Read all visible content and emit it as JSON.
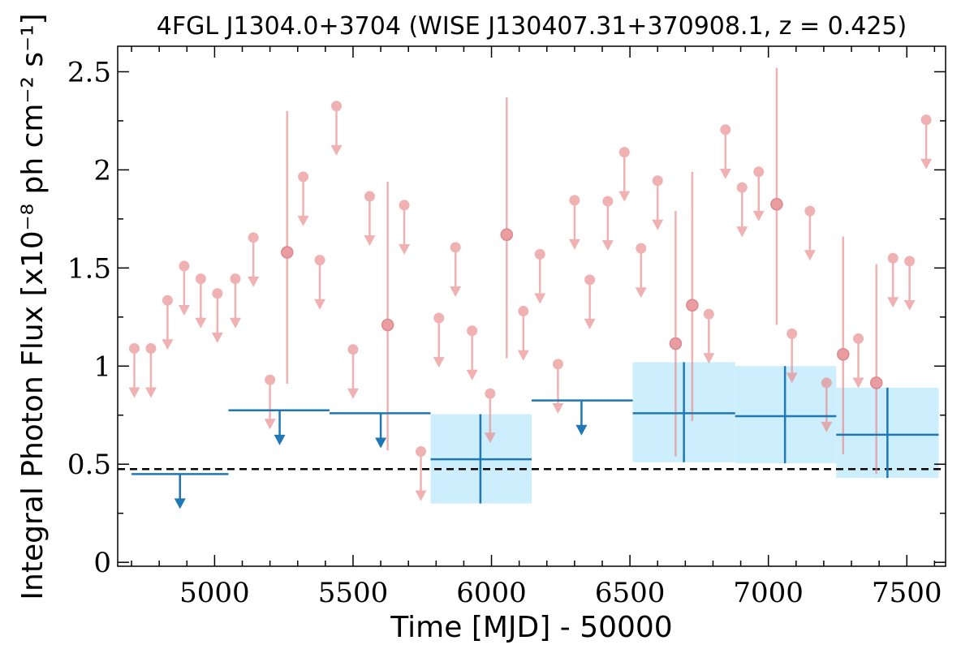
{
  "chart_data": {
    "type": "scatter",
    "title": "4FGL J1304.0+3704 (WISE J130407.31+370908.1, z = 0.425)",
    "xlabel": "Time [MJD] - 50000",
    "ylabel": "Integral Photon Flux [x10⁻⁸ ph cm⁻² s⁻¹]",
    "xlim": [
      4650,
      7640
    ],
    "ylim": [
      -0.02,
      2.63
    ],
    "x_ticks": [
      5000,
      5500,
      6000,
      6500,
      7000,
      7500
    ],
    "x_tick_labels": [
      "5000",
      "5500",
      "6000",
      "6500",
      "7000",
      "7500"
    ],
    "y_ticks": [
      0,
      0.5,
      1,
      1.5,
      2,
      2.5
    ],
    "y_tick_labels": [
      "0",
      "0.5",
      "1",
      "1.5",
      "2",
      "2.5"
    ],
    "reference_level": 0.475,
    "colors": {
      "short_bins": "#e8888a",
      "long_bins": "#1f77b4",
      "band": "#cdeefc",
      "reference": "#000000"
    },
    "short_bins_upper_limits": [
      {
        "x": 4710,
        "y": 1.09
      },
      {
        "x": 4770,
        "y": 1.09
      },
      {
        "x": 4830,
        "y": 1.335
      },
      {
        "x": 4890,
        "y": 1.51
      },
      {
        "x": 4950,
        "y": 1.445
      },
      {
        "x": 5010,
        "y": 1.37
      },
      {
        "x": 5075,
        "y": 1.445
      },
      {
        "x": 5140,
        "y": 1.655
      },
      {
        "x": 5200,
        "y": 0.93
      },
      {
        "x": 5320,
        "y": 1.965
      },
      {
        "x": 5380,
        "y": 1.54
      },
      {
        "x": 5440,
        "y": 2.325
      },
      {
        "x": 5500,
        "y": 1.085
      },
      {
        "x": 5560,
        "y": 1.865
      },
      {
        "x": 5685,
        "y": 1.82
      },
      {
        "x": 5745,
        "y": 0.565
      },
      {
        "x": 5810,
        "y": 1.245
      },
      {
        "x": 5870,
        "y": 1.605
      },
      {
        "x": 5930,
        "y": 1.18
      },
      {
        "x": 5995,
        "y": 0.86
      },
      {
        "x": 6115,
        "y": 1.28
      },
      {
        "x": 6175,
        "y": 1.57
      },
      {
        "x": 6240,
        "y": 1.01
      },
      {
        "x": 6300,
        "y": 1.845
      },
      {
        "x": 6355,
        "y": 1.44
      },
      {
        "x": 6420,
        "y": 1.84
      },
      {
        "x": 6480,
        "y": 2.09
      },
      {
        "x": 6540,
        "y": 1.6
      },
      {
        "x": 6600,
        "y": 1.945
      },
      {
        "x": 6785,
        "y": 1.265
      },
      {
        "x": 6845,
        "y": 2.205
      },
      {
        "x": 6905,
        "y": 1.91
      },
      {
        "x": 6965,
        "y": 1.99
      },
      {
        "x": 7085,
        "y": 1.165
      },
      {
        "x": 7150,
        "y": 1.79
      },
      {
        "x": 7210,
        "y": 0.915
      },
      {
        "x": 7325,
        "y": 1.14
      },
      {
        "x": 7450,
        "y": 1.55
      },
      {
        "x": 7510,
        "y": 1.535
      },
      {
        "x": 7570,
        "y": 2.255
      }
    ],
    "short_bins_detections": [
      {
        "x": 5262,
        "y": 1.58,
        "ylow": 0.91,
        "yhigh": 2.3
      },
      {
        "x": 5625,
        "y": 1.21,
        "ylow": 0.57,
        "yhigh": 1.94
      },
      {
        "x": 6055,
        "y": 1.67,
        "ylow": 1.04,
        "yhigh": 2.37
      },
      {
        "x": 6665,
        "y": 1.115,
        "ylow": 0.54,
        "yhigh": 1.79
      },
      {
        "x": 6725,
        "y": 1.31,
        "ylow": 0.72,
        "yhigh": 1.99
      },
      {
        "x": 7030,
        "y": 1.825,
        "ylow": 1.21,
        "yhigh": 2.52
      },
      {
        "x": 7270,
        "y": 1.06,
        "ylow": 0.55,
        "yhigh": 1.66
      },
      {
        "x": 7390,
        "y": 0.915,
        "ylow": 0.45,
        "yhigh": 1.52
      }
    ],
    "long_bins_upper_limits": [
      {
        "x": 4875,
        "xlow": 4700,
        "xhigh": 5050,
        "y": 0.45
      },
      {
        "x": 5235,
        "xlow": 5050,
        "xhigh": 5415,
        "y": 0.775
      },
      {
        "x": 5600,
        "xlow": 5415,
        "xhigh": 5780,
        "y": 0.76
      },
      {
        "x": 6325,
        "xlow": 6145,
        "xhigh": 6510,
        "y": 0.825
      }
    ],
    "long_bins_detections": [
      {
        "x": 5960,
        "xlow": 5780,
        "xhigh": 6145,
        "y": 0.525,
        "ylow": 0.3,
        "yhigh": 0.755
      },
      {
        "x": 6695,
        "xlow": 6510,
        "xhigh": 6880,
        "y": 0.76,
        "ylow": 0.51,
        "yhigh": 1.02
      },
      {
        "x": 7060,
        "xlow": 6880,
        "xhigh": 7245,
        "y": 0.745,
        "ylow": 0.505,
        "yhigh": 1.0
      },
      {
        "x": 7430,
        "xlow": 7245,
        "xhigh": 7615,
        "y": 0.65,
        "ylow": 0.43,
        "yhigh": 0.89
      }
    ]
  }
}
